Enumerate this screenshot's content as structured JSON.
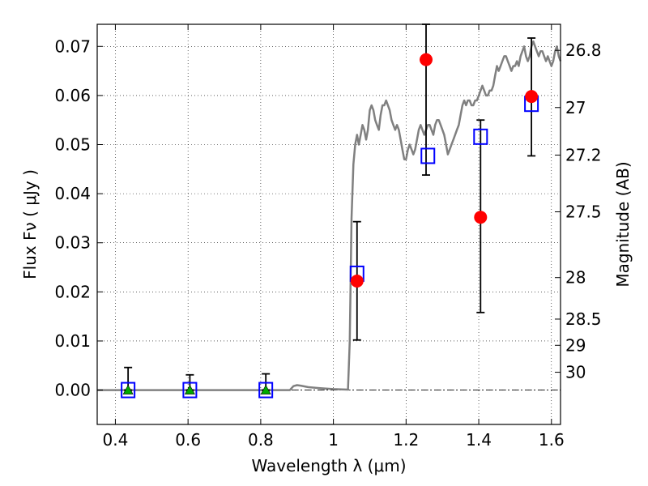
{
  "chart_data": {
    "type": "scatter",
    "xlabel": "Wavelength  λ (μm)",
    "ylabel": "Flux  Fν  ( μJy )",
    "ylabel_right": "Magnitude (AB)",
    "xlim": [
      0.35,
      1.625
    ],
    "ylim": [
      -0.007,
      0.0745
    ],
    "grid": true,
    "x_ticks": [
      {
        "value": 0.4,
        "label": "0.4"
      },
      {
        "value": 0.6,
        "label": "0.6"
      },
      {
        "value": 0.8,
        "label": "0.8"
      },
      {
        "value": 1.0,
        "label": "1"
      },
      {
        "value": 1.2,
        "label": "1.2"
      },
      {
        "value": 1.4,
        "label": "1.4"
      },
      {
        "value": 1.6,
        "label": "1.6"
      }
    ],
    "y_ticks": [
      {
        "value": 0.0,
        "label": "0.00"
      },
      {
        "value": 0.01,
        "label": "0.01"
      },
      {
        "value": 0.02,
        "label": "0.02"
      },
      {
        "value": 0.03,
        "label": "0.03"
      },
      {
        "value": 0.04,
        "label": "0.04"
      },
      {
        "value": 0.05,
        "label": "0.05"
      },
      {
        "value": 0.06,
        "label": "0.06"
      },
      {
        "value": 0.07,
        "label": "0.07"
      }
    ],
    "right_ticks": [
      {
        "mag": 26.8,
        "label": "26.8"
      },
      {
        "mag": 27.0,
        "label": "27"
      },
      {
        "mag": 27.2,
        "label": "27.2"
      },
      {
        "mag": 27.5,
        "label": "27.5"
      },
      {
        "mag": 28.0,
        "label": "28"
      },
      {
        "mag": 28.5,
        "label": "28.5"
      },
      {
        "mag": 29.0,
        "label": "29"
      },
      {
        "mag": 30.0,
        "label": "30"
      }
    ],
    "series": [
      {
        "kind": "line",
        "color": "#808080",
        "x": [
          0.35,
          0.88,
          0.89,
          0.9,
          0.91,
          0.93,
          0.96,
          1.0,
          1.04,
          1.045,
          1.05,
          1.055,
          1.06,
          1.065,
          1.07,
          1.075,
          1.08,
          1.085,
          1.09,
          1.095,
          1.1,
          1.105,
          1.11,
          1.115,
          1.12,
          1.125,
          1.13,
          1.135,
          1.14,
          1.145,
          1.15,
          1.155,
          1.16,
          1.165,
          1.17,
          1.175,
          1.18,
          1.185,
          1.19,
          1.195,
          1.2,
          1.205,
          1.21,
          1.215,
          1.22,
          1.225,
          1.23,
          1.235,
          1.24,
          1.245,
          1.25,
          1.255,
          1.26,
          1.265,
          1.27,
          1.275,
          1.28,
          1.285,
          1.29,
          1.295,
          1.3,
          1.305,
          1.31,
          1.315,
          1.32,
          1.325,
          1.33,
          1.335,
          1.34,
          1.345,
          1.35,
          1.355,
          1.36,
          1.365,
          1.37,
          1.375,
          1.38,
          1.385,
          1.39,
          1.395,
          1.4,
          1.405,
          1.41,
          1.415,
          1.42,
          1.425,
          1.43,
          1.435,
          1.44,
          1.445,
          1.45,
          1.455,
          1.46,
          1.465,
          1.47,
          1.475,
          1.48,
          1.485,
          1.49,
          1.495,
          1.5,
          1.505,
          1.51,
          1.515,
          1.52,
          1.525,
          1.53,
          1.535,
          1.54,
          1.545,
          1.55,
          1.555,
          1.56,
          1.565,
          1.57,
          1.575,
          1.58,
          1.585,
          1.59,
          1.595,
          1.6,
          1.605,
          1.61,
          1.615,
          1.62,
          1.625
        ],
        "y": [
          0.0,
          0.0,
          0.0008,
          0.001,
          0.0009,
          0.0006,
          0.0004,
          0.0002,
          0.0001,
          0.01,
          0.035,
          0.046,
          0.05,
          0.052,
          0.05,
          0.052,
          0.054,
          0.053,
          0.051,
          0.053,
          0.057,
          0.058,
          0.057,
          0.055,
          0.054,
          0.053,
          0.056,
          0.058,
          0.058,
          0.059,
          0.058,
          0.057,
          0.055,
          0.054,
          0.053,
          0.054,
          0.053,
          0.051,
          0.049,
          0.047,
          0.047,
          0.049,
          0.05,
          0.049,
          0.048,
          0.049,
          0.051,
          0.053,
          0.054,
          0.053,
          0.052,
          0.053,
          0.054,
          0.054,
          0.053,
          0.052,
          0.054,
          0.055,
          0.055,
          0.054,
          0.053,
          0.052,
          0.05,
          0.048,
          0.049,
          0.05,
          0.051,
          0.052,
          0.053,
          0.054,
          0.056,
          0.058,
          0.059,
          0.058,
          0.059,
          0.059,
          0.058,
          0.058,
          0.059,
          0.059,
          0.06,
          0.061,
          0.062,
          0.061,
          0.06,
          0.06,
          0.061,
          0.061,
          0.062,
          0.064,
          0.066,
          0.065,
          0.066,
          0.067,
          0.068,
          0.068,
          0.067,
          0.066,
          0.065,
          0.066,
          0.066,
          0.067,
          0.066,
          0.068,
          0.069,
          0.07,
          0.068,
          0.067,
          0.068,
          0.07,
          0.071,
          0.07,
          0.069,
          0.068,
          0.069,
          0.069,
          0.068,
          0.067,
          0.068,
          0.067,
          0.066,
          0.067,
          0.069,
          0.07,
          0.068,
          0.067
        ]
      },
      {
        "kind": "observed-with-errors",
        "marker": "circle",
        "color": "#ff0000",
        "x": [
          1.065,
          1.255,
          1.405,
          1.545
        ],
        "y": [
          0.0222,
          0.0673,
          0.0352,
          0.0598
        ],
        "y_err_low": [
          0.0102,
          0.0438,
          0.0158,
          0.0477
        ],
        "y_err_high": [
          0.0343,
          0.0745,
          0.055,
          0.0717
        ]
      },
      {
        "kind": "model",
        "marker": "square-open",
        "color": "#0000ff",
        "x": [
          0.435,
          0.605,
          0.814,
          1.065,
          1.26,
          1.405,
          1.545
        ],
        "y": [
          0.0,
          0.0,
          0.0,
          0.0237,
          0.0477,
          0.0516,
          0.0583
        ]
      },
      {
        "kind": "upper-limit",
        "marker": "triangle",
        "color": "#00aa00",
        "x": [
          0.435,
          0.605,
          0.814
        ],
        "y": [
          0.0,
          0.0,
          0.0
        ],
        "y_err_high": [
          0.0046,
          0.0031,
          0.0033
        ]
      }
    ]
  }
}
